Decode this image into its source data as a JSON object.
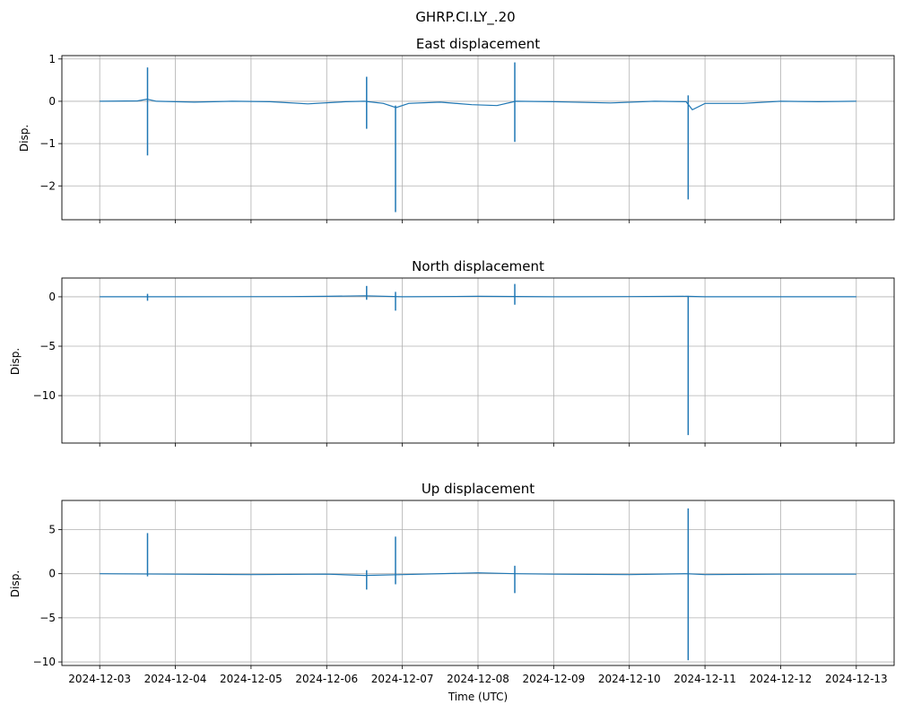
{
  "figure": {
    "suptitle": "GHRP.CI.LY_.20",
    "xlabel": "Time (UTC)",
    "line_color": "#1f77b4",
    "grid_color": "#b0b0b0"
  },
  "chart_data": [
    {
      "type": "line",
      "title": "East displacement",
      "ylabel": "Disp.",
      "xlabel": "",
      "ylim": [
        -2.8,
        1.08
      ],
      "yticks": [
        1,
        0,
        -1,
        -2
      ],
      "ytick_labels": [
        "1",
        "0",
        "−1",
        "−2"
      ],
      "xlim": [
        "2024-12-02T12:00",
        "2024-12-13T12:00"
      ],
      "xticks": [
        "2024-12-03",
        "2024-12-04",
        "2024-12-05",
        "2024-12-06",
        "2024-12-07",
        "2024-12-08",
        "2024-12-09",
        "2024-12-10",
        "2024-12-11",
        "2024-12-12",
        "2024-12-13"
      ],
      "grid": true,
      "baseline": [
        [
          "2024-12-03T00:00",
          0.0
        ],
        [
          "2024-12-03T12:00",
          0.01
        ],
        [
          "2024-12-03T15:00",
          0.05
        ],
        [
          "2024-12-03T18:00",
          0.0
        ],
        [
          "2024-12-04T06:00",
          -0.02
        ],
        [
          "2024-12-04T18:00",
          0.0
        ],
        [
          "2024-12-05T06:00",
          -0.01
        ],
        [
          "2024-12-05T18:00",
          -0.06
        ],
        [
          "2024-12-06T06:00",
          -0.01
        ],
        [
          "2024-12-06T12:00",
          0.0
        ],
        [
          "2024-12-06T18:00",
          -0.05
        ],
        [
          "2024-12-06T22:00",
          -0.15
        ],
        [
          "2024-12-07T02:00",
          -0.05
        ],
        [
          "2024-12-07T12:00",
          -0.02
        ],
        [
          "2024-12-07T22:00",
          -0.08
        ],
        [
          "2024-12-08T06:00",
          -0.1
        ],
        [
          "2024-12-08T12:00",
          0.0
        ],
        [
          "2024-12-09T00:00",
          -0.01
        ],
        [
          "2024-12-09T18:00",
          -0.04
        ],
        [
          "2024-12-10T08:00",
          0.0
        ],
        [
          "2024-12-10T18:00",
          -0.01
        ],
        [
          "2024-12-10T20:00",
          -0.2
        ],
        [
          "2024-12-11T00:00",
          -0.05
        ],
        [
          "2024-12-11T12:00",
          -0.05
        ],
        [
          "2024-12-12T00:00",
          0.0
        ],
        [
          "2024-12-12T12:00",
          -0.01
        ],
        [
          "2024-12-13T00:00",
          0.0
        ]
      ],
      "spikes": [
        {
          "x": "2024-12-03T15:10",
          "min": -1.28,
          "max": 0.8
        },
        {
          "x": "2024-12-06T12:40",
          "min": -0.65,
          "max": 0.58
        },
        {
          "x": "2024-12-06T21:50",
          "min": -2.62,
          "max": -0.1
        },
        {
          "x": "2024-12-08T11:40",
          "min": -0.96,
          "max": 0.92
        },
        {
          "x": "2024-12-10T18:40",
          "min": -2.32,
          "max": 0.14
        }
      ]
    },
    {
      "type": "line",
      "title": "North displacement",
      "ylabel": "Disp.",
      "xlabel": "",
      "ylim": [
        -14.8,
        1.9
      ],
      "yticks": [
        0,
        -5,
        -10
      ],
      "ytick_labels": [
        "0",
        "−5",
        "−10"
      ],
      "xlim": [
        "2024-12-02T12:00",
        "2024-12-13T12:00"
      ],
      "xticks": [
        "2024-12-03",
        "2024-12-04",
        "2024-12-05",
        "2024-12-06",
        "2024-12-07",
        "2024-12-08",
        "2024-12-09",
        "2024-12-10",
        "2024-12-11",
        "2024-12-12",
        "2024-12-13"
      ],
      "grid": true,
      "baseline": [
        [
          "2024-12-03T00:00",
          0.0
        ],
        [
          "2024-12-04T00:00",
          0.0
        ],
        [
          "2024-12-05T12:00",
          0.02
        ],
        [
          "2024-12-06T00:00",
          0.05
        ],
        [
          "2024-12-06T12:00",
          0.1
        ],
        [
          "2024-12-07T00:00",
          0.0
        ],
        [
          "2024-12-08T00:00",
          0.05
        ],
        [
          "2024-12-09T00:00",
          0.0
        ],
        [
          "2024-12-10T00:00",
          0.02
        ],
        [
          "2024-12-10T18:00",
          0.05
        ],
        [
          "2024-12-11T00:00",
          0.0
        ],
        [
          "2024-12-12T00:00",
          0.0
        ],
        [
          "2024-12-13T00:00",
          0.0
        ]
      ],
      "spikes": [
        {
          "x": "2024-12-03T15:10",
          "min": -0.4,
          "max": 0.3
        },
        {
          "x": "2024-12-06T12:40",
          "min": -0.3,
          "max": 1.1
        },
        {
          "x": "2024-12-06T21:50",
          "min": -1.4,
          "max": 0.5
        },
        {
          "x": "2024-12-08T11:40",
          "min": -0.8,
          "max": 1.3
        },
        {
          "x": "2024-12-10T18:40",
          "min": -14.0,
          "max": 0.1
        }
      ]
    },
    {
      "type": "line",
      "title": "Up displacement",
      "ylabel": "Disp.",
      "xlabel": "Time (UTC)",
      "ylim": [
        -10.4,
        8.3
      ],
      "yticks": [
        5,
        0,
        -5,
        -10
      ],
      "ytick_labels": [
        "5",
        "0",
        "−5",
        "−10"
      ],
      "xlim": [
        "2024-12-02T12:00",
        "2024-12-13T12:00"
      ],
      "xticks": [
        "2024-12-03",
        "2024-12-04",
        "2024-12-05",
        "2024-12-06",
        "2024-12-07",
        "2024-12-08",
        "2024-12-09",
        "2024-12-10",
        "2024-12-11",
        "2024-12-12",
        "2024-12-13"
      ],
      "grid": true,
      "baseline": [
        [
          "2024-12-03T00:00",
          0.0
        ],
        [
          "2024-12-04T00:00",
          -0.05
        ],
        [
          "2024-12-05T00:00",
          -0.1
        ],
        [
          "2024-12-06T00:00",
          -0.05
        ],
        [
          "2024-12-06T12:00",
          -0.2
        ],
        [
          "2024-12-07T00:00",
          -0.1
        ],
        [
          "2024-12-08T00:00",
          0.1
        ],
        [
          "2024-12-08T12:00",
          0.0
        ],
        [
          "2024-12-09T00:00",
          -0.05
        ],
        [
          "2024-12-10T00:00",
          -0.1
        ],
        [
          "2024-12-10T18:00",
          0.0
        ],
        [
          "2024-12-11T00:00",
          -0.1
        ],
        [
          "2024-12-12T00:00",
          -0.05
        ],
        [
          "2024-12-13T00:00",
          -0.05
        ]
      ],
      "spikes": [
        {
          "x": "2024-12-03T15:10",
          "min": -0.3,
          "max": 4.6
        },
        {
          "x": "2024-12-06T12:40",
          "min": -1.8,
          "max": 0.4
        },
        {
          "x": "2024-12-06T21:50",
          "min": -1.2,
          "max": 4.2
        },
        {
          "x": "2024-12-08T11:40",
          "min": -2.2,
          "max": 0.9
        },
        {
          "x": "2024-12-10T18:40",
          "min": -9.8,
          "max": 7.4
        }
      ]
    }
  ]
}
